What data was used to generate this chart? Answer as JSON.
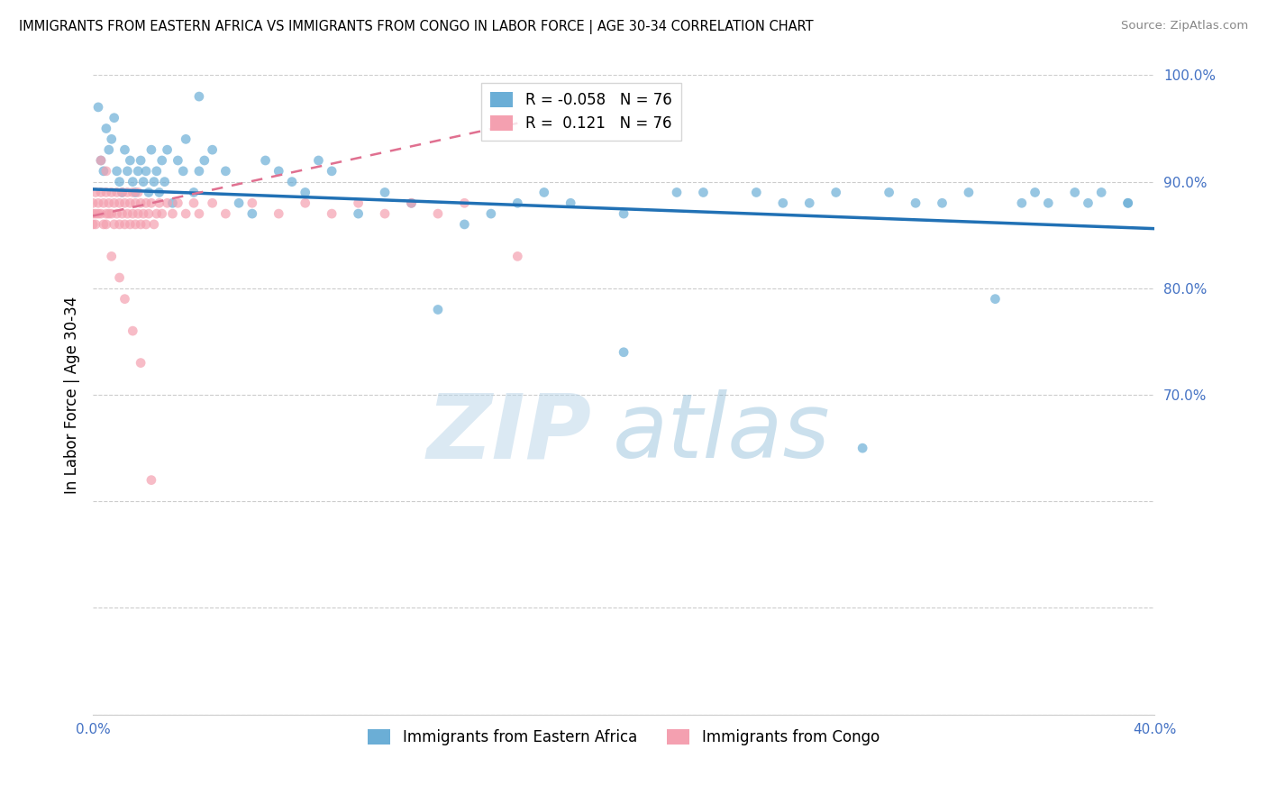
{
  "title": "IMMIGRANTS FROM EASTERN AFRICA VS IMMIGRANTS FROM CONGO IN LABOR FORCE | AGE 30-34 CORRELATION CHART",
  "source": "Source: ZipAtlas.com",
  "ylabel": "In Labor Force | Age 30-34",
  "x_min": 0.0,
  "x_max": 0.4,
  "y_min": 0.4,
  "y_max": 1.0,
  "blue_color": "#6baed6",
  "pink_color": "#f4a0b0",
  "blue_line_color": "#2171b5",
  "pink_line_color": "#e07090",
  "R_blue": -0.058,
  "N_blue": 76,
  "R_pink": 0.121,
  "N_pink": 76,
  "legend_label_blue": "Immigrants from Eastern Africa",
  "legend_label_pink": "Immigrants from Congo",
  "watermark_zip": "ZIP",
  "watermark_atlas": "atlas",
  "blue_scatter_x": [
    0.002,
    0.003,
    0.004,
    0.005,
    0.006,
    0.007,
    0.008,
    0.009,
    0.01,
    0.011,
    0.012,
    0.013,
    0.014,
    0.015,
    0.016,
    0.017,
    0.018,
    0.019,
    0.02,
    0.021,
    0.022,
    0.023,
    0.024,
    0.025,
    0.026,
    0.027,
    0.028,
    0.03,
    0.032,
    0.034,
    0.035,
    0.038,
    0.04,
    0.042,
    0.045,
    0.05,
    0.055,
    0.06,
    0.065,
    0.07,
    0.075,
    0.08,
    0.085,
    0.09,
    0.1,
    0.11,
    0.12,
    0.13,
    0.15,
    0.16,
    0.17,
    0.18,
    0.2,
    0.22,
    0.25,
    0.27,
    0.28,
    0.3,
    0.32,
    0.33,
    0.34,
    0.35,
    0.36,
    0.37,
    0.38,
    0.39,
    0.14,
    0.2,
    0.23,
    0.26,
    0.29,
    0.31,
    0.355,
    0.375,
    0.39,
    0.04
  ],
  "blue_scatter_y": [
    0.97,
    0.92,
    0.91,
    0.95,
    0.93,
    0.94,
    0.96,
    0.91,
    0.9,
    0.89,
    0.93,
    0.91,
    0.92,
    0.9,
    0.89,
    0.91,
    0.92,
    0.9,
    0.91,
    0.89,
    0.93,
    0.9,
    0.91,
    0.89,
    0.92,
    0.9,
    0.93,
    0.88,
    0.92,
    0.91,
    0.94,
    0.89,
    0.91,
    0.92,
    0.93,
    0.91,
    0.88,
    0.87,
    0.92,
    0.91,
    0.9,
    0.89,
    0.92,
    0.91,
    0.87,
    0.89,
    0.88,
    0.78,
    0.87,
    0.88,
    0.89,
    0.88,
    0.74,
    0.89,
    0.89,
    0.88,
    0.89,
    0.89,
    0.88,
    0.89,
    0.79,
    0.88,
    0.88,
    0.89,
    0.89,
    0.88,
    0.86,
    0.87,
    0.89,
    0.88,
    0.65,
    0.88,
    0.89,
    0.88,
    0.88,
    0.98
  ],
  "pink_scatter_x": [
    0.0,
    0.0,
    0.0,
    0.001,
    0.001,
    0.001,
    0.002,
    0.002,
    0.003,
    0.003,
    0.004,
    0.004,
    0.005,
    0.005,
    0.005,
    0.006,
    0.006,
    0.007,
    0.007,
    0.008,
    0.008,
    0.009,
    0.009,
    0.01,
    0.01,
    0.011,
    0.011,
    0.012,
    0.012,
    0.013,
    0.013,
    0.014,
    0.014,
    0.015,
    0.015,
    0.016,
    0.016,
    0.017,
    0.017,
    0.018,
    0.018,
    0.019,
    0.02,
    0.02,
    0.021,
    0.022,
    0.023,
    0.024,
    0.025,
    0.026,
    0.028,
    0.03,
    0.032,
    0.035,
    0.038,
    0.04,
    0.045,
    0.05,
    0.06,
    0.07,
    0.08,
    0.09,
    0.1,
    0.11,
    0.12,
    0.13,
    0.14,
    0.16,
    0.003,
    0.005,
    0.007,
    0.01,
    0.012,
    0.015,
    0.018,
    0.022
  ],
  "pink_scatter_y": [
    0.88,
    0.87,
    0.86,
    0.89,
    0.87,
    0.86,
    0.88,
    0.87,
    0.89,
    0.87,
    0.88,
    0.86,
    0.89,
    0.87,
    0.86,
    0.88,
    0.87,
    0.89,
    0.87,
    0.88,
    0.86,
    0.89,
    0.87,
    0.88,
    0.86,
    0.89,
    0.87,
    0.88,
    0.86,
    0.89,
    0.87,
    0.88,
    0.86,
    0.89,
    0.87,
    0.88,
    0.86,
    0.89,
    0.87,
    0.88,
    0.86,
    0.87,
    0.88,
    0.86,
    0.87,
    0.88,
    0.86,
    0.87,
    0.88,
    0.87,
    0.88,
    0.87,
    0.88,
    0.87,
    0.88,
    0.87,
    0.88,
    0.87,
    0.88,
    0.87,
    0.88,
    0.87,
    0.88,
    0.87,
    0.88,
    0.87,
    0.88,
    0.83,
    0.92,
    0.91,
    0.83,
    0.81,
    0.79,
    0.76,
    0.73,
    0.62
  ],
  "blue_trend_x0": 0.0,
  "blue_trend_y0": 0.893,
  "blue_trend_x1": 0.4,
  "blue_trend_y1": 0.856,
  "pink_trend_x0": 0.0,
  "pink_trend_y0": 0.868,
  "pink_trend_x1": 0.16,
  "pink_trend_y1": 0.955
}
